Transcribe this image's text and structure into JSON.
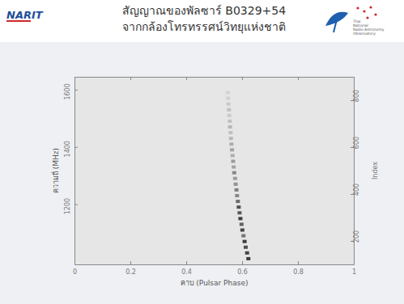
{
  "header": {
    "logo_left": "NARIT",
    "title_lines": [
      "สัญญาณของพัลซาร์ B0329+54",
      "จากกล้องโทรทรรศน์วิทยุแห่งชาติ"
    ],
    "logo_right": [
      "Thai",
      "National",
      "Radio Astronomy",
      "Observatory"
    ]
  },
  "chart_data": {
    "type": "heatmap",
    "xlabel": "คาบ (Pulsar Phase)",
    "ylabel": "ความถี่ (MHz)",
    "y2label": "Index",
    "xlim": [
      0,
      1
    ],
    "xticks": [
      0,
      0.2,
      0.4,
      0.6,
      0.8,
      1
    ],
    "ylim": [
      990,
      1645
    ],
    "yticks": [
      1200,
      1400,
      1600
    ],
    "y2lim": [
      100,
      900
    ],
    "y2ticks": [
      200,
      400,
      600,
      800
    ],
    "zlim": [
      0,
      1
    ],
    "cells": {
      "x": [
        0.6225,
        0.618,
        0.613,
        0.609,
        0.605,
        0.601,
        0.598,
        0.594,
        0.591,
        0.588,
        0.585,
        0.582,
        0.58,
        0.577,
        0.575,
        0.572,
        0.57,
        0.568,
        0.566,
        0.564,
        0.562,
        0.56,
        0.559,
        0.557,
        0.556,
        0.554,
        0.553,
        0.551,
        0.55,
        0.549
      ],
      "y": [
        1010,
        1030,
        1050,
        1070,
        1090,
        1110,
        1130,
        1150,
        1170,
        1190,
        1210,
        1230,
        1250,
        1270,
        1290,
        1310,
        1330,
        1350,
        1370,
        1390,
        1410,
        1430,
        1450,
        1470,
        1490,
        1510,
        1530,
        1550,
        1570,
        1590
      ],
      "values": [
        0.9,
        0.85,
        0.8,
        0.9,
        0.6,
        0.85,
        0.7,
        0.9,
        0.75,
        0.8,
        0.65,
        0.5,
        0.55,
        0.45,
        0.4,
        0.5,
        0.35,
        0.4,
        0.3,
        0.35,
        0.3,
        0.25,
        0.2,
        0.25,
        0.2,
        0.15,
        0.2,
        0.15,
        0.12,
        0.1
      ]
    }
  }
}
